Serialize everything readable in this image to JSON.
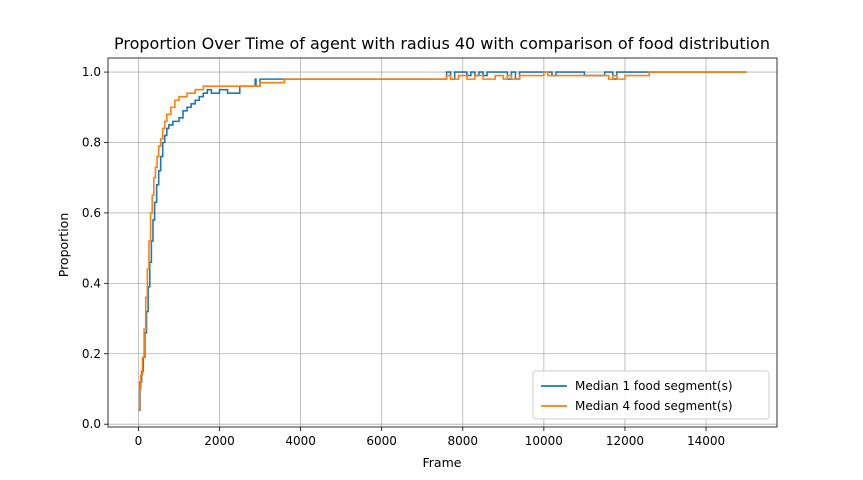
{
  "chart_data": {
    "type": "line",
    "title": "Proportion Over Time of agent with radius 40 with comparison of food distribution",
    "xlabel": "Frame",
    "ylabel": "Proportion",
    "xlim": [
      -750,
      15750
    ],
    "ylim": [
      -0.008,
      1.04
    ],
    "xticks": [
      0,
      2000,
      4000,
      6000,
      8000,
      10000,
      12000,
      14000
    ],
    "yticks": [
      0.0,
      0.2,
      0.4,
      0.6,
      0.8,
      1.0
    ],
    "xtick_labels": [
      "0",
      "2000",
      "4000",
      "6000",
      "8000",
      "10000",
      "12000",
      "14000"
    ],
    "ytick_labels": [
      "0.0",
      "0.2",
      "0.4",
      "0.6",
      "0.8",
      "1.0"
    ],
    "grid": true,
    "legend_position": "bottom-right",
    "series": [
      {
        "name": "Median 1 food segment(s)",
        "color": "#1f77b4",
        "step": true,
        "x": [
          0,
          40,
          80,
          120,
          160,
          200,
          240,
          280,
          320,
          360,
          400,
          450,
          500,
          550,
          600,
          650,
          700,
          750,
          850,
          1000,
          1100,
          1200,
          1300,
          1400,
          1500,
          1600,
          1700,
          1800,
          2000,
          2200,
          2500,
          2880,
          2900,
          3000,
          3600,
          3700,
          7500,
          7600,
          7700,
          7800,
          8100,
          8200,
          8300,
          8400,
          8500,
          8600,
          9000,
          9100,
          9200,
          9300,
          9400,
          10000,
          10200,
          10300,
          11000,
          11500,
          11700,
          11800,
          11900,
          12000,
          15000
        ],
        "y": [
          0.04,
          0.12,
          0.15,
          0.19,
          0.26,
          0.32,
          0.39,
          0.46,
          0.52,
          0.58,
          0.63,
          0.68,
          0.72,
          0.76,
          0.8,
          0.82,
          0.84,
          0.85,
          0.86,
          0.87,
          0.89,
          0.9,
          0.91,
          0.92,
          0.93,
          0.94,
          0.95,
          0.94,
          0.95,
          0.94,
          0.96,
          0.98,
          0.96,
          0.98,
          0.98,
          0.98,
          0.98,
          1.0,
          0.98,
          1.0,
          0.99,
          1.0,
          0.99,
          1.0,
          0.99,
          1.0,
          1.0,
          0.98,
          1.0,
          0.98,
          1.0,
          1.0,
          0.99,
          1.0,
          0.99,
          1.0,
          0.98,
          1.0,
          1.0,
          1.0,
          1.0
        ]
      },
      {
        "name": "Median 4 food segment(s)",
        "color": "#ff7f0e",
        "step": true,
        "x": [
          0,
          30,
          60,
          100,
          140,
          180,
          220,
          260,
          300,
          340,
          380,
          420,
          460,
          500,
          550,
          600,
          650,
          700,
          800,
          900,
          1000,
          1100,
          1200,
          1300,
          1400,
          1500,
          1600,
          1700,
          1900,
          2100,
          3000,
          3600,
          3700,
          7600,
          7700,
          7900,
          8100,
          8300,
          8500,
          8800,
          9000,
          9100,
          9200,
          9400,
          9500,
          10000,
          10100,
          11000,
          11600,
          11700,
          11800,
          12000,
          12600,
          15000
        ],
        "y": [
          0.04,
          0.1,
          0.14,
          0.19,
          0.27,
          0.36,
          0.44,
          0.52,
          0.6,
          0.65,
          0.7,
          0.73,
          0.76,
          0.79,
          0.81,
          0.84,
          0.86,
          0.88,
          0.9,
          0.92,
          0.93,
          0.93,
          0.94,
          0.94,
          0.95,
          0.95,
          0.96,
          0.96,
          0.96,
          0.96,
          0.97,
          0.98,
          0.98,
          0.99,
          0.98,
          0.99,
          0.98,
          0.99,
          0.98,
          0.99,
          0.98,
          0.99,
          0.98,
          0.99,
          0.99,
          1.0,
          0.99,
          0.99,
          0.98,
          0.99,
          0.98,
          0.99,
          1.0,
          1.0
        ]
      }
    ]
  }
}
